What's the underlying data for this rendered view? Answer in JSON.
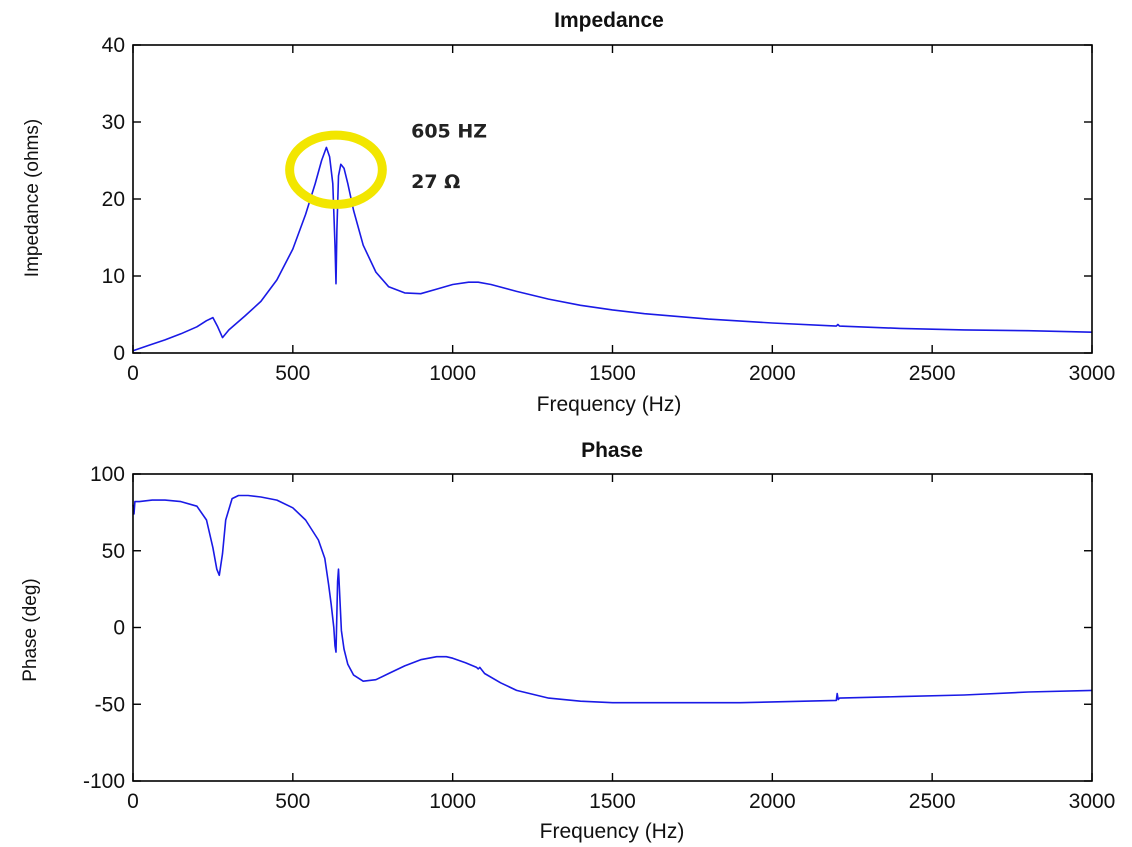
{
  "colors": {
    "series": "#1a1ae6",
    "highlight": "#f2e600",
    "axes": "#000000"
  },
  "chart_data": [
    {
      "type": "line",
      "title": "Impedance",
      "xlabel": "Frequency (Hz)",
      "ylabel": "Impedance (ohms)",
      "xlim": [
        0,
        3000
      ],
      "ylim": [
        0,
        40
      ],
      "xticks": [
        0,
        500,
        1000,
        1500,
        2000,
        2500,
        3000
      ],
      "yticks": [
        0,
        10,
        20,
        30,
        40
      ],
      "grid": false,
      "annotations": [
        {
          "text": "605 HZ",
          "x": 870,
          "y": 28
        },
        {
          "text": "27 Ω",
          "x": 870,
          "y": 21.4
        }
      ],
      "highlight_circle": {
        "x": 635,
        "y": 23.8,
        "rx": 145,
        "ry": 4.5
      },
      "series": [
        {
          "x": [
            0,
            50,
            100,
            150,
            200,
            230,
            250,
            265,
            280,
            300,
            350,
            400,
            450,
            500,
            540,
            570,
            590,
            605,
            615,
            625,
            632,
            635,
            638,
            643,
            650,
            660,
            672,
            690,
            720,
            760,
            800,
            850,
            900,
            950,
            1000,
            1050,
            1080,
            1120,
            1200,
            1300,
            1400,
            1500,
            1600,
            1800,
            2000,
            2200,
            2205,
            2210,
            2400,
            2600,
            2800,
            3000
          ],
          "y": [
            0.3,
            1.0,
            1.7,
            2.5,
            3.4,
            4.2,
            4.6,
            3.4,
            2.0,
            3.0,
            4.8,
            6.7,
            9.5,
            13.5,
            18.0,
            22.0,
            25.0,
            26.7,
            25.5,
            22.0,
            14.0,
            9.0,
            16.0,
            23.0,
            24.5,
            24.0,
            22.0,
            18.5,
            14.0,
            10.5,
            8.6,
            7.8,
            7.7,
            8.3,
            8.9,
            9.2,
            9.2,
            8.9,
            8.0,
            7.0,
            6.2,
            5.6,
            5.1,
            4.4,
            3.9,
            3.5,
            3.7,
            3.5,
            3.2,
            3.0,
            2.9,
            2.7
          ]
        }
      ]
    },
    {
      "type": "line",
      "title": "Phase",
      "xlabel": "Frequency (Hz)",
      "ylabel": "Phase (deg)",
      "xlim": [
        0,
        3000
      ],
      "ylim": [
        -100,
        100
      ],
      "xticks": [
        0,
        500,
        1000,
        1500,
        2000,
        2500,
        3000
      ],
      "yticks": [
        -100,
        -50,
        0,
        50,
        100
      ],
      "grid": false,
      "series": [
        {
          "x": [
            0,
            3,
            6,
            20,
            60,
            100,
            150,
            200,
            230,
            250,
            262,
            270,
            280,
            290,
            310,
            330,
            360,
            400,
            450,
            500,
            540,
            580,
            600,
            612,
            620,
            628,
            632,
            635,
            640,
            643,
            647,
            652,
            660,
            672,
            690,
            720,
            760,
            800,
            850,
            900,
            950,
            980,
            1000,
            1040,
            1075,
            1080,
            1085,
            1100,
            1150,
            1200,
            1300,
            1400,
            1500,
            1700,
            1900,
            2100,
            2200,
            2203,
            2206,
            2210,
            2400,
            2600,
            2800,
            3000
          ],
          "y": [
            80,
            74,
            82,
            82,
            83,
            83,
            82,
            79,
            70,
            52,
            38,
            34,
            48,
            70,
            84,
            86,
            86,
            85,
            83,
            78,
            70,
            57,
            45,
            28,
            15,
            0,
            -12,
            -16,
            30,
            38,
            20,
            -2,
            -14,
            -24,
            -31,
            -35,
            -34,
            -30,
            -25,
            -21,
            -19,
            -19,
            -20,
            -23,
            -26,
            -27,
            -26,
            -30,
            -36,
            -41,
            -46,
            -48,
            -49,
            -49,
            -49,
            -48,
            -47.5,
            -43,
            -47,
            -46,
            -45,
            -44,
            -42,
            -41
          ]
        }
      ]
    }
  ]
}
